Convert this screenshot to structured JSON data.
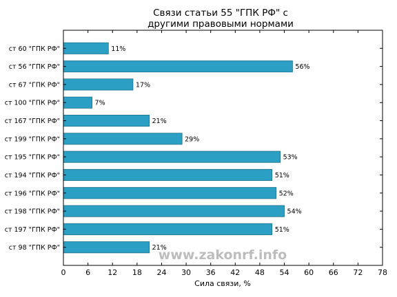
{
  "chart_data": {
    "type": "bar",
    "orientation": "horizontal",
    "title": [
      "Связи статьи 55 \"ГПК РФ\" с",
      "другими правовыми нормами"
    ],
    "xlabel": "Сила связи, %",
    "ylabel": "",
    "xlim": [
      0,
      78
    ],
    "xticks": [
      0,
      6,
      12,
      18,
      24,
      30,
      36,
      42,
      48,
      54,
      60,
      66,
      72,
      78
    ],
    "grid": false,
    "categories": [
      "ст 60 \"ГПК РФ\"",
      "ст 56 \"ГПК РФ\"",
      "ст 67 \"ГПК РФ\"",
      "ст 100 \"ГПК РФ\"",
      "ст 167 \"ГПК РФ\"",
      "ст 199 \"ГПК РФ\"",
      "ст 195 \"ГПК РФ\"",
      "ст 194 \"ГПК РФ\"",
      "ст 196 \"ГПК РФ\"",
      "ст 198 \"ГПК РФ\"",
      "ст 197 \"ГПК РФ\"",
      "ст 98 \"ГПК РФ\""
    ],
    "values": [
      11,
      56,
      17,
      7,
      21,
      29,
      53,
      51,
      52,
      54,
      51,
      21
    ],
    "value_labels": [
      "11%",
      "56%",
      "17%",
      "7%",
      "21%",
      "29%",
      "53%",
      "51%",
      "52%",
      "54%",
      "51%",
      "21%"
    ],
    "bar_color": "#2b9fc4",
    "bar_edge_color": "#1d6f8a"
  },
  "watermark": "www.zakonrf.info"
}
